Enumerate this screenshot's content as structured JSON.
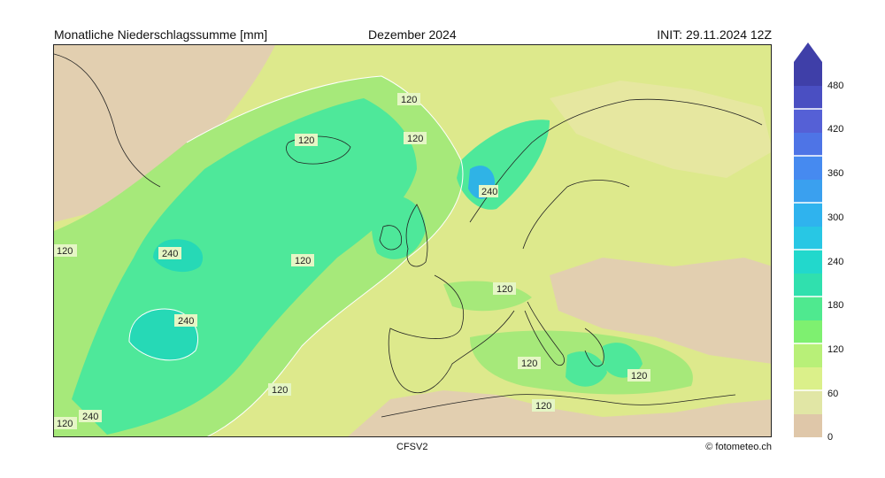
{
  "header": {
    "title_left": "Monatliche Niederschlagssumme [mm]",
    "title_center": "Dezember 2024",
    "title_right": "INIT: 29.11.2024 12Z"
  },
  "footer": {
    "model": "CFSV2",
    "credit": "© fotometeo.ch"
  },
  "map": {
    "contour_labels": [
      "120",
      "120",
      "120",
      "240",
      "120",
      "120",
      "240",
      "120",
      "240",
      "120",
      "120",
      "120",
      "120",
      "240",
      "120"
    ],
    "colors": {
      "dry": "#e2cfb0",
      "low": "#dde98c",
      "mid": "#a6e97a",
      "wet": "#4ee89a",
      "very_wet": "#26d9b6",
      "extreme": "#2fb3e6",
      "land_border": "#222222"
    }
  },
  "colorbar": {
    "ticks": [
      "480",
      "420",
      "360",
      "300",
      "240",
      "180",
      "120",
      "60",
      "0"
    ],
    "colors": [
      "#dfc7a9",
      "#e1e6a5",
      "#dbf08a",
      "#b8f078",
      "#7ef070",
      "#4fe98f",
      "#30e0ae",
      "#22d8cc",
      "#28c7e4",
      "#2fb3ee",
      "#3aa0ef",
      "#468af0",
      "#4e74e6",
      "#5560d6",
      "#4a4fc2",
      "#3f3fa8"
    ]
  }
}
